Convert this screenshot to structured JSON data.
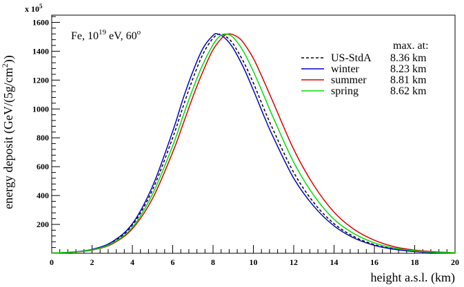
{
  "chart_data": {
    "type": "line",
    "annotation": "Fe, 10^19 eV, 60^o",
    "annotation_parts": {
      "base": "Fe, 10",
      "exp1": "19",
      "mid": " eV, 60",
      "exp2": "o"
    },
    "multiplier": {
      "base": "x 10",
      "exp": "5"
    },
    "xlabel": "height a.s.l. (km)",
    "ylabel": "energy deposit (GeV/(5g/cm",
    "ylabel_exp": "2",
    "ylabel_end": "))",
    "xlim": [
      0,
      20
    ],
    "ylim": [
      0,
      1650
    ],
    "x_ticks": [
      0,
      2,
      4,
      6,
      8,
      10,
      12,
      14,
      16,
      18,
      20
    ],
    "y_ticks": [
      200,
      400,
      600,
      800,
      1000,
      1200,
      1400,
      1600
    ],
    "legend_title": "max. at:",
    "legend_position": "top-right",
    "series": [
      {
        "name": "US-StdA",
        "max_label": "8.36 km",
        "color": "#000000",
        "dash": "dashed",
        "x": [
          0,
          1,
          2,
          3,
          4,
          5,
          6,
          6.5,
          7,
          7.5,
          8,
          8.36,
          8.7,
          9,
          9.5,
          10,
          10.5,
          11,
          12,
          13,
          14,
          15,
          16,
          17,
          18,
          19,
          20
        ],
        "y": [
          2,
          8,
          25,
          75,
          195,
          440,
          800,
          1010,
          1210,
          1380,
          1490,
          1520,
          1495,
          1450,
          1330,
          1180,
          1010,
          850,
          560,
          350,
          205,
          115,
          60,
          30,
          14,
          6,
          2
        ]
      },
      {
        "name": "winter",
        "max_label": "8.23 km",
        "color": "#0000cc",
        "dash": "solid",
        "x": [
          0,
          1,
          2,
          3,
          4,
          5,
          6,
          6.5,
          7,
          7.5,
          8,
          8.23,
          8.6,
          9,
          9.5,
          10,
          10.5,
          11,
          12,
          13,
          14,
          15,
          16,
          17,
          18,
          19,
          20
        ],
        "y": [
          2,
          8,
          27,
          80,
          205,
          465,
          845,
          1065,
          1260,
          1420,
          1510,
          1520,
          1490,
          1420,
          1290,
          1130,
          960,
          800,
          520,
          325,
          190,
          105,
          55,
          27,
          12,
          5,
          2
        ]
      },
      {
        "name": "summer",
        "max_label": "8.81 km",
        "color": "#dd0000",
        "dash": "solid",
        "x": [
          0,
          1,
          2,
          3,
          4,
          5,
          6,
          6.5,
          7,
          7.5,
          8,
          8.5,
          8.81,
          9.2,
          9.5,
          10,
          10.5,
          11,
          12,
          13,
          14,
          15,
          16,
          17,
          18,
          19,
          20
        ],
        "y": [
          2,
          7,
          22,
          65,
          170,
          380,
          700,
          890,
          1085,
          1260,
          1410,
          1500,
          1520,
          1500,
          1460,
          1350,
          1200,
          1040,
          720,
          470,
          285,
          165,
          90,
          45,
          22,
          10,
          4
        ]
      },
      {
        "name": "spring",
        "max_label": "8.62 km",
        "color": "#00dd00",
        "dash": "solid",
        "x": [
          0,
          1,
          2,
          3,
          4,
          5,
          6,
          6.5,
          7,
          7.5,
          8,
          8.3,
          8.62,
          9,
          9.5,
          10,
          10.5,
          11,
          12,
          13,
          14,
          15,
          16,
          17,
          18,
          19,
          20
        ],
        "y": [
          2,
          7,
          24,
          70,
          180,
          410,
          745,
          945,
          1140,
          1310,
          1445,
          1500,
          1520,
          1495,
          1400,
          1260,
          1100,
          935,
          630,
          400,
          235,
          135,
          72,
          36,
          17,
          7,
          3
        ]
      }
    ]
  }
}
